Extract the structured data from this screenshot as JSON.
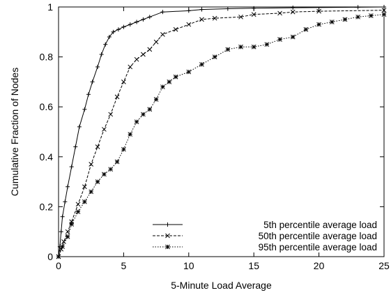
{
  "chart_data": {
    "type": "line",
    "title": "",
    "xlabel": "5-Minute Load Average",
    "ylabel": "Cumulative Fraction of Nodes",
    "xlim": [
      0,
      25
    ],
    "ylim": [
      0,
      1
    ],
    "x_ticks": [
      "0",
      "5",
      "10",
      "15",
      "20",
      "25"
    ],
    "y_ticks": [
      "0",
      "0.2",
      "0.4",
      "0.6",
      "0.8",
      "1"
    ],
    "grid": false,
    "legend_position": "bottom-right",
    "series": [
      {
        "name": "5th percentile average load",
        "line_style": "solid",
        "marker": "+",
        "x": [
          0,
          0.1,
          0.2,
          0.3,
          0.5,
          0.7,
          1.0,
          1.3,
          1.6,
          2.0,
          2.3,
          2.6,
          3.0,
          3.3,
          3.6,
          3.9,
          4.2,
          4.6,
          5.0,
          5.5,
          6.0,
          6.5,
          7.0,
          8.0,
          10.0,
          11.0,
          13.0,
          15.0,
          18.0,
          23.0,
          25.0
        ],
        "y": [
          0,
          0.04,
          0.1,
          0.16,
          0.22,
          0.28,
          0.36,
          0.44,
          0.52,
          0.59,
          0.65,
          0.7,
          0.76,
          0.81,
          0.85,
          0.88,
          0.9,
          0.91,
          0.92,
          0.93,
          0.94,
          0.95,
          0.96,
          0.98,
          0.985,
          0.99,
          0.993,
          0.995,
          0.997,
          0.999,
          1.0
        ]
      },
      {
        "name": "50th percentile average load",
        "line_style": "dashed",
        "marker": "x",
        "x": [
          0,
          0.2,
          0.4,
          0.7,
          1.0,
          1.5,
          2.0,
          2.5,
          3.0,
          3.5,
          4.0,
          4.5,
          5.0,
          5.5,
          6.0,
          6.5,
          7.0,
          7.5,
          8.0,
          9.0,
          10.0,
          11.0,
          12.0,
          14.0,
          15.0,
          17.0,
          18.0,
          20.0,
          25.0
        ],
        "y": [
          0,
          0.03,
          0.06,
          0.1,
          0.14,
          0.21,
          0.28,
          0.37,
          0.44,
          0.51,
          0.57,
          0.64,
          0.7,
          0.76,
          0.79,
          0.81,
          0.83,
          0.86,
          0.89,
          0.91,
          0.93,
          0.95,
          0.955,
          0.96,
          0.97,
          0.975,
          0.98,
          0.983,
          0.987
        ]
      },
      {
        "name": "95th percentile average load",
        "line_style": "dotted",
        "marker": "*",
        "x": [
          0,
          0.3,
          0.7,
          1.0,
          1.5,
          2.0,
          2.5,
          3.0,
          3.5,
          4.0,
          4.5,
          5.0,
          5.5,
          6.0,
          6.5,
          7.0,
          7.5,
          8.0,
          8.5,
          9.0,
          10.0,
          11.0,
          12.0,
          13.0,
          14.0,
          15.0,
          16.0,
          17.0,
          18.0,
          19.0,
          20.0,
          21.0,
          22.0,
          23.0,
          24.0,
          25.0
        ],
        "y": [
          0,
          0.04,
          0.08,
          0.13,
          0.18,
          0.22,
          0.26,
          0.3,
          0.33,
          0.35,
          0.38,
          0.43,
          0.49,
          0.54,
          0.57,
          0.59,
          0.63,
          0.68,
          0.7,
          0.72,
          0.74,
          0.77,
          0.8,
          0.83,
          0.84,
          0.84,
          0.85,
          0.87,
          0.88,
          0.91,
          0.93,
          0.94,
          0.95,
          0.96,
          0.965,
          0.97
        ]
      }
    ]
  }
}
